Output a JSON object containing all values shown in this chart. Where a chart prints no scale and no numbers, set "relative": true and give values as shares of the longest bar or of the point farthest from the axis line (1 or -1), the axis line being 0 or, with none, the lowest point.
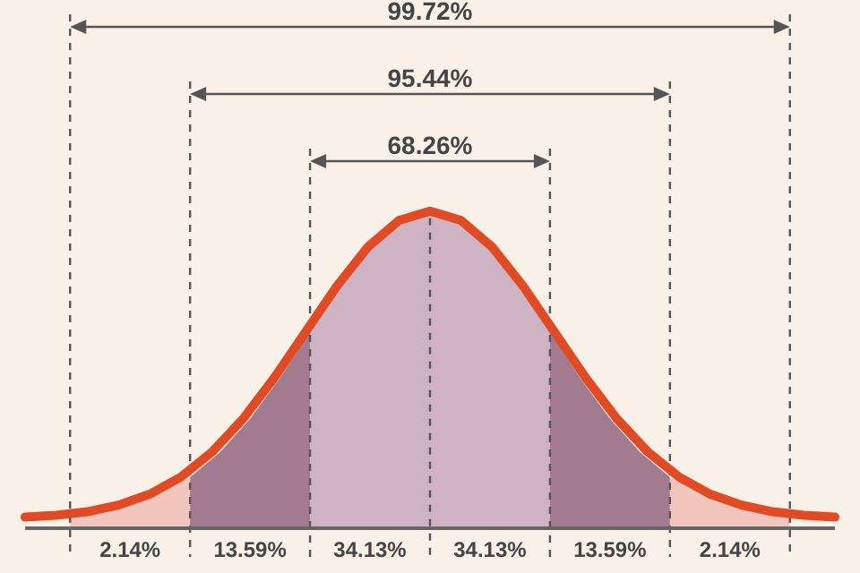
{
  "chart_data": {
    "type": "line",
    "relative": true,
    "categories": [
      null,
      null,
      null,
      null,
      null,
      null,
      null,
      null,
      null,
      null,
      null,
      null,
      null,
      null,
      null,
      null,
      null,
      null,
      null,
      null,
      null,
      null,
      null,
      null,
      null,
      null,
      null
    ],
    "series": [
      {
        "color": "#e04a25",
        "values": [
          0.035,
          0.041,
          0.052,
          0.073,
          0.107,
          0.161,
          0.24,
          0.345,
          0.474,
          0.618,
          0.762,
          0.886,
          0.97,
          1,
          0.97,
          0.886,
          0.762,
          0.618,
          0.474,
          0.345,
          0.24,
          0.161,
          0.107,
          0.073,
          0.052,
          0.041,
          0.035
        ]
      }
    ],
    "annotations": [
      "99.72%",
      "95.44%",
      "68.26%",
      "2.14%",
      "13.59%",
      "34.13%",
      "34.13%",
      "13.59%",
      "2.14%"
    ]
  }
}
